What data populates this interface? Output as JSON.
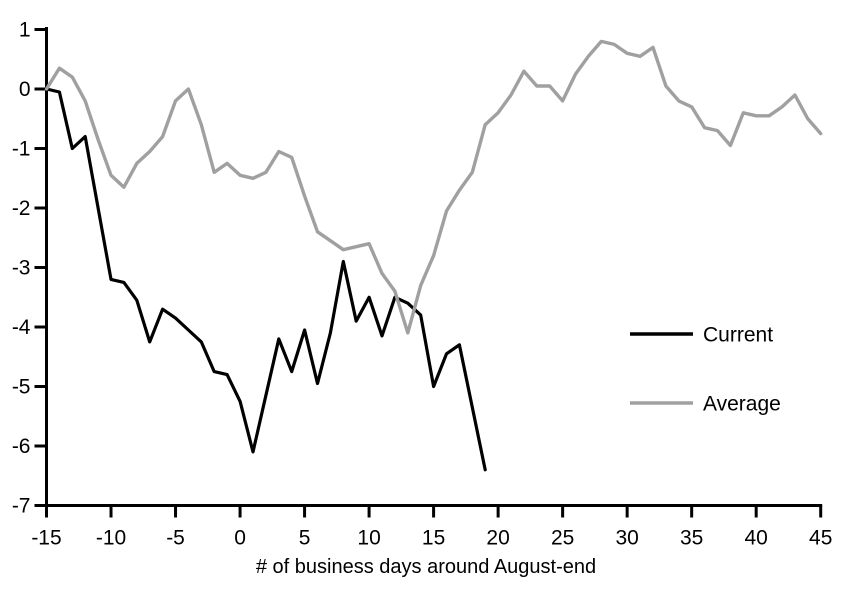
{
  "chart_data": {
    "type": "line",
    "xlabel": "# of business days around August-end",
    "ylabel": "",
    "xlim": [
      -15,
      45
    ],
    "ylim": [
      -7,
      1
    ],
    "xticks": [
      -15,
      -10,
      -5,
      0,
      5,
      10,
      15,
      20,
      25,
      30,
      35,
      40,
      45
    ],
    "yticks": [
      1,
      0,
      -1,
      -2,
      -3,
      -4,
      -5,
      -6,
      -7
    ],
    "grid": false,
    "legend_position": "right-middle",
    "axis_color": "#000000",
    "series": [
      {
        "name": "Current",
        "color": "#000000",
        "stroke_width": 3.2,
        "x": [
          -15,
          -14,
          -13,
          -12,
          -11,
          -10,
          -9,
          -8,
          -7,
          -6,
          -5,
          -4,
          -3,
          -2,
          -1,
          0,
          1,
          2,
          3,
          4,
          5,
          6,
          7,
          8,
          9,
          10,
          11,
          12,
          13,
          14,
          15,
          16,
          17,
          18,
          19
        ],
        "values": [
          0,
          -0.05,
          -1.0,
          -0.8,
          -2.0,
          -3.2,
          -3.25,
          -3.55,
          -4.25,
          -3.7,
          -3.85,
          -4.05,
          -4.25,
          -4.75,
          -4.8,
          -5.25,
          -6.1,
          -5.15,
          -4.2,
          -4.75,
          -4.05,
          -4.95,
          -4.1,
          -2.9,
          -3.9,
          -3.5,
          -4.15,
          -3.5,
          -3.6,
          -3.8,
          -5.0,
          -4.45,
          -4.3,
          -5.35,
          -6.4
        ]
      },
      {
        "name": "Average",
        "color": "#a0a0a0",
        "stroke_width": 3.4,
        "x": [
          -15,
          -14,
          -13,
          -12,
          -11,
          -10,
          -9,
          -8,
          -7,
          -6,
          -5,
          -4,
          -3,
          -2,
          -1,
          0,
          1,
          2,
          3,
          4,
          5,
          6,
          7,
          8,
          9,
          10,
          11,
          12,
          13,
          14,
          15,
          16,
          17,
          18,
          19,
          20,
          21,
          22,
          23,
          24,
          25,
          26,
          27,
          28,
          29,
          30,
          31,
          32,
          33,
          34,
          35,
          36,
          37,
          38,
          39,
          40,
          41,
          42,
          43,
          44,
          45
        ],
        "values": [
          0,
          0.35,
          0.2,
          -0.2,
          -0.85,
          -1.45,
          -1.65,
          -1.25,
          -1.05,
          -0.8,
          -0.2,
          0.0,
          -0.6,
          -1.4,
          -1.25,
          -1.45,
          -1.5,
          -1.4,
          -1.05,
          -1.15,
          -1.8,
          -2.4,
          -2.55,
          -2.7,
          -2.65,
          -2.6,
          -3.1,
          -3.4,
          -4.1,
          -3.3,
          -2.8,
          -2.05,
          -1.7,
          -1.4,
          -0.6,
          -0.4,
          -0.1,
          0.3,
          0.05,
          0.05,
          -0.2,
          0.25,
          0.55,
          0.8,
          0.75,
          0.6,
          0.55,
          0.7,
          0.05,
          -0.2,
          -0.3,
          -0.65,
          -0.7,
          -0.95,
          -0.4,
          -0.45,
          -0.45,
          -0.3,
          -0.1,
          -0.5,
          -0.75
        ]
      }
    ],
    "legend": [
      {
        "label": "Current",
        "color": "#000000"
      },
      {
        "label": "Average",
        "color": "#a0a0a0"
      }
    ]
  }
}
